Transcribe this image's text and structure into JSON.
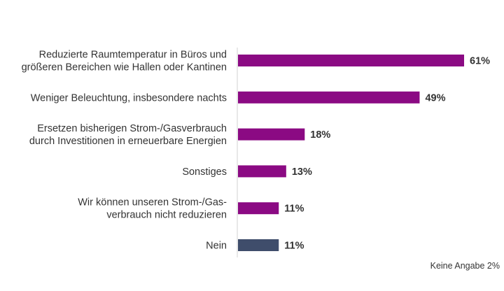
{
  "chart_data": {
    "type": "bar",
    "orientation": "horizontal",
    "categories": [
      [
        "Reduzierte Raumtemperatur in Büros und",
        "größeren Bereichen wie Hallen oder Kantinen"
      ],
      [
        "Weniger Beleuchtung, insbesondere nachts"
      ],
      [
        "Ersetzen bisherigen Strom-/Gasverbrauch",
        "durch Investitionen in erneuerbare Energien"
      ],
      [
        "Sonstiges"
      ],
      [
        "Wir können unseren Strom-/Gas-",
        "verbrauch nicht reduzieren"
      ],
      [
        "Nein"
      ]
    ],
    "values": [
      61,
      49,
      18,
      13,
      11,
      11
    ],
    "value_labels": [
      "61%",
      "49%",
      "18%",
      "13%",
      "11%",
      "11%"
    ],
    "colors": [
      "#8b0a83",
      "#8b0a83",
      "#8b0a83",
      "#8b0a83",
      "#8b0a83",
      "#3f4d6b"
    ],
    "xlim": [
      0,
      61
    ],
    "grid": false,
    "footnote": "Keine Angabe 2%"
  }
}
